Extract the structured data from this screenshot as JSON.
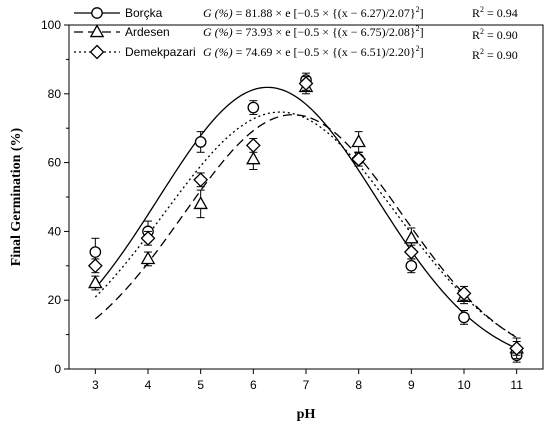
{
  "chart_data": {
    "type": "scatter",
    "xlabel": "pH",
    "ylabel": "Final Germination (%)",
    "xlim": [
      2.5,
      11.5
    ],
    "ylim": [
      0,
      100
    ],
    "xticks": [
      3,
      4,
      5,
      6,
      7,
      8,
      9,
      10,
      11
    ],
    "yticks": [
      0,
      20,
      40,
      60,
      80,
      100
    ],
    "grid": false,
    "legend_position": "top-left",
    "series": [
      {
        "name": "Borçka",
        "marker": "circle",
        "line_style": "solid",
        "equation": {
          "prefix": "G (%)",
          "body": "= 81.88 × e [−0.5 × {(x − 6.27)/2.07}",
          "exponent": "2",
          "suffix": "]"
        },
        "r2": {
          "label": "R",
          "exp": "2",
          "value": "= 0.94"
        },
        "fit": {
          "a": 81.88,
          "x0": 6.27,
          "b": 2.07
        },
        "x": [
          3,
          4,
          5,
          6,
          7,
          8,
          9,
          10,
          11
        ],
        "values": [
          34,
          40,
          66,
          76,
          84,
          61,
          30,
          15,
          4
        ],
        "errors": [
          4,
          3,
          3,
          2,
          2,
          2,
          2,
          2,
          2
        ]
      },
      {
        "name": "Ardesen",
        "marker": "triangle",
        "line_style": "dashed",
        "equation": {
          "prefix": "G (%)",
          "body": "= 73.93 × e [−0.5 × {(x − 6.75)/2.08}",
          "exponent": "2",
          "suffix": "]"
        },
        "r2": {
          "label": "R",
          "exp": "2",
          "value": "= 0.90"
        },
        "fit": {
          "a": 73.93,
          "x0": 6.75,
          "b": 2.08
        },
        "x": [
          3,
          4,
          5,
          6,
          7,
          8,
          9,
          10,
          11
        ],
        "values": [
          25,
          32,
          48,
          61,
          82,
          66,
          38,
          21,
          6
        ],
        "errors": [
          2,
          2,
          4,
          3,
          2,
          3,
          3,
          2,
          3
        ]
      },
      {
        "name": "Demekpazari",
        "marker": "diamond",
        "line_style": "dotted",
        "equation": {
          "prefix": "G (%)",
          "body": "= 74.69 × e [−0.5 × {(x − 6.51)/2.20}",
          "exponent": "2",
          "suffix": "]"
        },
        "r2": {
          "label": "R",
          "exp": "2",
          "value": "= 0.90"
        },
        "fit": {
          "a": 74.69,
          "x0": 6.51,
          "b": 2.2
        },
        "x": [
          3,
          4,
          5,
          6,
          7,
          8,
          9,
          10,
          11
        ],
        "values": [
          30,
          38,
          55,
          65,
          83,
          61,
          34,
          22,
          6
        ],
        "errors": [
          2,
          2,
          2,
          2,
          2,
          2,
          2,
          2,
          2
        ]
      }
    ]
  }
}
